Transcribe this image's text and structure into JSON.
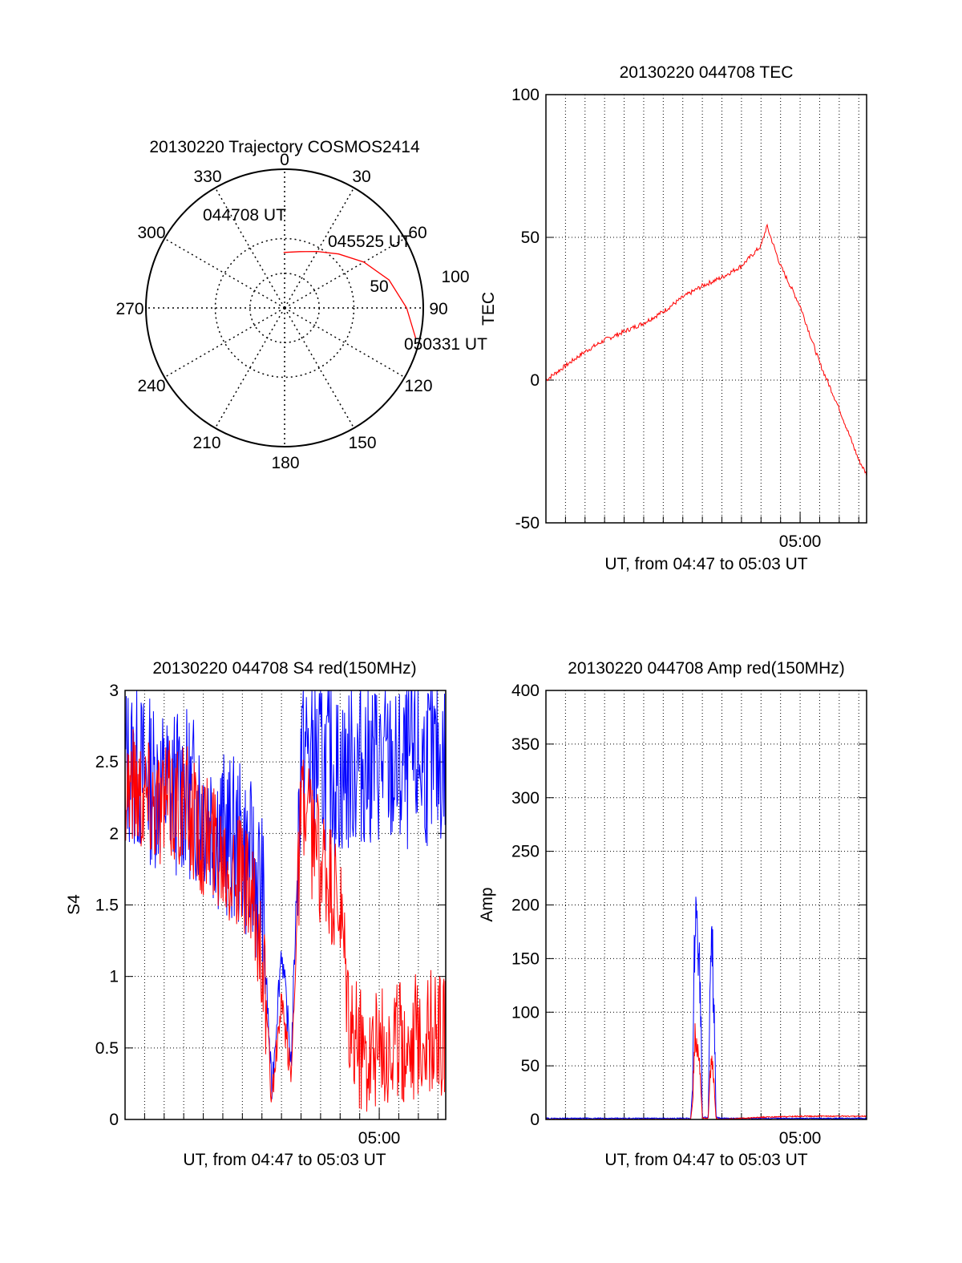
{
  "colors": {
    "red": "#ff0000",
    "blue": "#0000ff",
    "axis": "#000000"
  },
  "chart_data": [
    {
      "type": "polar",
      "title": "20130220 Trajectory COSMOS2414",
      "azimuth_labels": [
        "0",
        "30",
        "60",
        "90",
        "120",
        "150",
        "180",
        "210",
        "240",
        "270",
        "300",
        "330"
      ],
      "elevation_ring_labels": [
        "50",
        "100"
      ],
      "series": [
        {
          "color": "red",
          "points": [
            {
              "az": 359,
              "r": 40
            },
            {
              "az": 15,
              "r": 42
            },
            {
              "az": 30,
              "r": 47
            },
            {
              "az": 45,
              "r": 55
            },
            {
              "az": 60,
              "r": 66
            },
            {
              "az": 75,
              "r": 78
            },
            {
              "az": 90,
              "r": 88
            },
            {
              "az": 103,
              "r": 97
            }
          ]
        }
      ],
      "annotations": [
        {
          "text": "044708 UT",
          "az": 355,
          "r": 42
        },
        {
          "text": "045525 UT",
          "az": 56,
          "r": 62
        },
        {
          "text": "050331 UT",
          "az": 103,
          "r": 97
        }
      ]
    },
    {
      "type": "line",
      "title": "20130220 044708 TEC",
      "ylabel": "TEC",
      "xlabel": "UT, from 04:47 to 05:03 UT",
      "xlim": [
        0,
        16.4
      ],
      "ylim": [
        -50,
        100
      ],
      "yticks": [
        -50,
        0,
        50,
        100
      ],
      "xtick_labels": [
        {
          "value": 13,
          "label": "05:00"
        }
      ],
      "grid": true,
      "series": [
        {
          "color": "red",
          "x": [
            0,
            1,
            2,
            3,
            4,
            5,
            6,
            7,
            8,
            9,
            10,
            11,
            11.3,
            12,
            13,
            14,
            15,
            16,
            16.4
          ],
          "y": [
            0,
            5,
            10,
            14,
            17,
            20,
            24,
            29,
            33,
            36,
            40,
            47,
            54,
            40,
            26,
            6,
            -10,
            -28,
            -33
          ]
        }
      ]
    },
    {
      "type": "line",
      "title": "20130220 044708 S4 red(150MHz)",
      "ylabel": "S4",
      "xlabel": "UT, from 04:47 to 05:03 UT",
      "xlim": [
        0,
        16.4
      ],
      "ylim": [
        0,
        3
      ],
      "yticks": [
        0,
        0.5,
        1,
        1.5,
        2,
        2.5,
        3
      ],
      "xtick_labels": [
        {
          "value": 13,
          "label": "05:00"
        }
      ],
      "grid": true,
      "series": [
        {
          "color": "blue",
          "x": [
            0,
            1,
            2,
            3,
            4,
            5,
            6,
            7,
            7.5,
            8,
            8.5,
            9,
            10,
            11,
            12,
            13,
            14,
            15,
            16.4
          ],
          "y": [
            2.5,
            2.4,
            2.3,
            2.3,
            2.2,
            2.0,
            1.9,
            1.6,
            0.2,
            1.2,
            0.4,
            2.6,
            2.5,
            2.4,
            2.5,
            2.5,
            2.4,
            2.5,
            2.5
          ]
        },
        {
          "color": "red",
          "x": [
            0,
            1,
            2,
            3,
            4,
            5,
            6,
            7,
            7.5,
            8,
            8.5,
            9,
            10,
            11,
            11.5,
            12,
            13,
            14,
            15,
            16.4
          ],
          "y": [
            2.4,
            2.3,
            2.2,
            2.2,
            2.0,
            1.9,
            1.7,
            1.2,
            0.15,
            0.8,
            0.3,
            2.2,
            1.8,
            1.4,
            0.6,
            0.5,
            0.5,
            0.55,
            0.6,
            0.6
          ]
        }
      ]
    },
    {
      "type": "line",
      "title": "20130220 044708 Amp red(150MHz)",
      "ylabel": "Amp",
      "xlabel": "UT, from 04:47 to 05:03 UT",
      "xlim": [
        0,
        16.4
      ],
      "ylim": [
        0,
        400
      ],
      "yticks": [
        0,
        50,
        100,
        150,
        200,
        250,
        300,
        350,
        400
      ],
      "xtick_labels": [
        {
          "value": 13,
          "label": "05:00"
        }
      ],
      "grid": true,
      "series": [
        {
          "color": "blue",
          "x": [
            0,
            7.4,
            7.5,
            7.6,
            7.7,
            7.8,
            7.9,
            8.0,
            8.3,
            8.4,
            8.5,
            8.6,
            8.7,
            9.0,
            16.4
          ],
          "y": [
            1,
            1,
            30,
            160,
            205,
            165,
            120,
            2,
            2,
            120,
            160,
            100,
            2,
            1,
            1
          ]
        },
        {
          "color": "red",
          "x": [
            0,
            7.4,
            7.5,
            7.6,
            7.7,
            7.8,
            7.9,
            8.0,
            8.3,
            8.4,
            8.5,
            8.6,
            8.7,
            9.0,
            11,
            13,
            16.4
          ],
          "y": [
            0,
            0,
            15,
            70,
            80,
            60,
            40,
            1,
            1,
            40,
            55,
            30,
            1,
            0,
            2,
            3,
            3
          ]
        }
      ]
    }
  ]
}
